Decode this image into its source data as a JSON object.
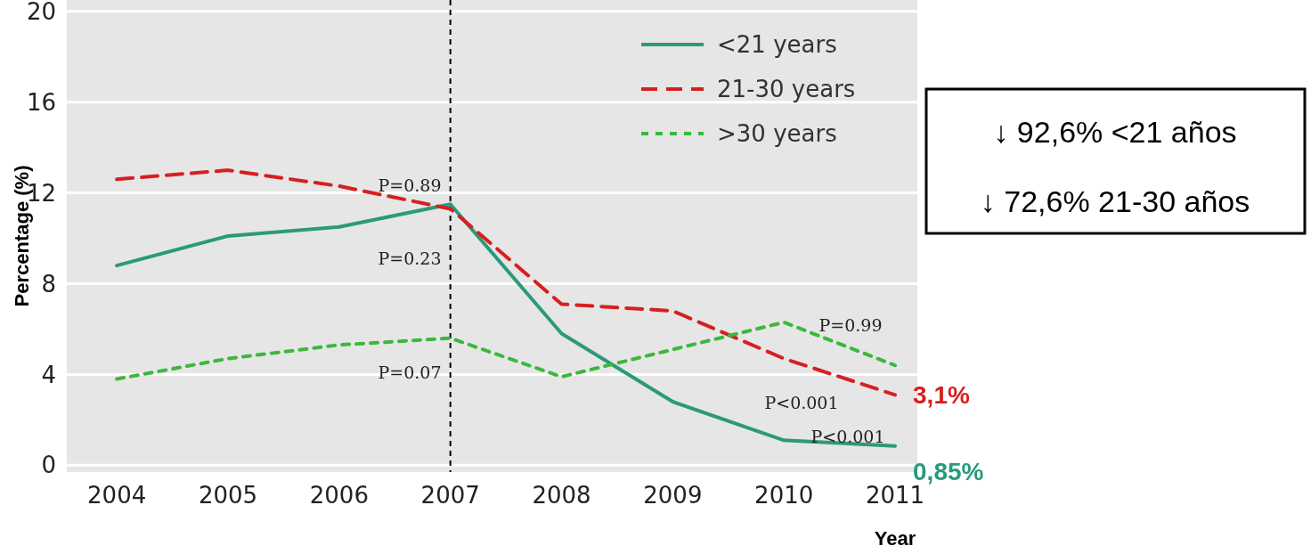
{
  "chart_data": {
    "type": "line",
    "xlabel": "Year",
    "ylabel": "Percentage (%)",
    "x": [
      2004,
      2005,
      2006,
      2007,
      2008,
      2009,
      2010,
      2011
    ],
    "xlim": [
      2003.55,
      2011.2
    ],
    "xticks": [
      2004,
      2005,
      2006,
      2007,
      2008,
      2009,
      2010,
      2011
    ],
    "ylim": [
      -0.3,
      20.5
    ],
    "yticks": [
      0,
      4,
      8,
      12,
      16,
      20
    ],
    "grid": "y",
    "legend": "top right",
    "series": [
      {
        "name": "<21 years",
        "color": "#2a9a7a",
        "line_style": "solid",
        "values": [
          8.8,
          10.1,
          10.5,
          11.5,
          5.8,
          2.8,
          1.1,
          0.85
        ],
        "value_labels": [
          null,
          null,
          null,
          null,
          null,
          null,
          null,
          "0,85%"
        ]
      },
      {
        "name": "21-30 years",
        "color": "#d62020",
        "line_style": "dashed",
        "values": [
          12.6,
          13.0,
          12.3,
          11.3,
          7.1,
          6.8,
          4.7,
          3.1
        ],
        "value_labels": [
          null,
          null,
          null,
          null,
          null,
          null,
          null,
          "3,1%"
        ]
      },
      {
        "name": ">30 years",
        "color": "#3cb83c",
        "line_style": "dotted",
        "values": [
          3.8,
          4.7,
          5.3,
          5.6,
          3.9,
          5.1,
          6.3,
          4.4
        ]
      }
    ],
    "ref_lines": [
      {
        "axis": "x",
        "value": 2007,
        "color": "#000000",
        "line_style": "dashed"
      }
    ],
    "annotations": [
      "P=0.89",
      "P=0.23",
      "P=0.07",
      "P=0.99",
      "P<0.001",
      "P<0.001",
      "↓ 92,6% <21 años",
      "↓ 72,6% 21-30 años"
    ]
  }
}
